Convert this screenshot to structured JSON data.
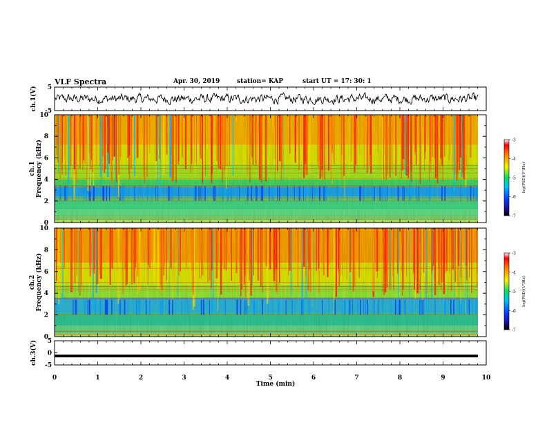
{
  "header": {
    "title": "VLF Spectra",
    "date": "Apr. 30, 2019",
    "station": "station= KAP",
    "start_time": "start UT =   17: 30: 1"
  },
  "chart_data": [
    {
      "type": "line",
      "panel": "ch1-waveform",
      "ylabel": "ch.1(V)",
      "ylim": [
        -5,
        5
      ],
      "yticks": [
        "5",
        "-5"
      ],
      "xlim": [
        0,
        10
      ],
      "series": [
        {
          "values": "noisy waveform between about -2.5 and 2.5 V",
          "color": "#000000"
        }
      ]
    },
    {
      "type": "heatmap",
      "panel": "ch1-spectrogram",
      "ylabel_line1": "ch.1",
      "ylabel_line2": "Frequency (kHz)",
      "ylim": [
        0,
        10
      ],
      "yticks": [
        "0",
        "2",
        "4",
        "6",
        "8",
        "10"
      ],
      "xlim": [
        0,
        9.8
      ],
      "colorbar": {
        "label": "log(PSD)(V²/Hz)",
        "range": [
          -7,
          -3
        ],
        "ticks": [
          "-3",
          "-4",
          "-5",
          "-6",
          "-7"
        ]
      }
    },
    {
      "type": "heatmap",
      "panel": "ch2-spectrogram",
      "ylabel_line1": "ch.2",
      "ylabel_line2": "Frequency (kHz)",
      "ylim": [
        0,
        10
      ],
      "yticks": [
        "0",
        "2",
        "4",
        "6",
        "8",
        "10"
      ],
      "xlim": [
        0,
        9.8
      ],
      "colorbar": {
        "label": "log(PSD)(V²/Hz)",
        "range": [
          -7,
          -3
        ],
        "ticks": [
          "-3",
          "-4",
          "-5",
          "-6",
          "-7"
        ]
      }
    },
    {
      "type": "line",
      "panel": "ch3-waveform",
      "ylabel": "ch.3(V)",
      "ylim": [
        -5,
        5
      ],
      "yticks": [
        "5",
        "0",
        "-5"
      ],
      "xlim": [
        0,
        10
      ],
      "series": [
        {
          "values": "constant near -1.3 V",
          "color": "#000000"
        }
      ]
    }
  ],
  "x_axis": {
    "label": "Time (min)",
    "ticks": [
      "0",
      "1",
      "2",
      "3",
      "4",
      "5",
      "6",
      "7",
      "8",
      "9",
      "10"
    ]
  }
}
